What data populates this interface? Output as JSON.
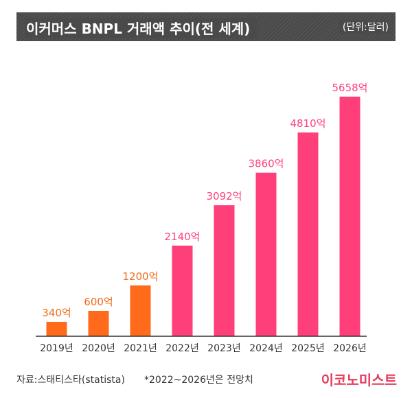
{
  "header": {
    "title": "이커머스 BNPL 거래액 추이(전 세계)",
    "unit": "(단위:달러)"
  },
  "footer": {
    "source": "자료:스태티스타(statista)",
    "note": "*2022~2026년은 전망치",
    "brand": "이코노미스트"
  },
  "colors": {
    "actual": "#ff6b1a",
    "forecast": "#ff3f7a",
    "actual_label": "#f26a1b",
    "forecast_label": "#ff3f7a",
    "axis": "#333333"
  },
  "chart_data": {
    "type": "bar",
    "title": "이커머스 BNPL 거래액 추이(전 세계)",
    "unit": "(단위:달러)",
    "categories": [
      "2019년",
      "2020년",
      "2021년",
      "2022년",
      "2023년",
      "2024년",
      "2025년",
      "2026년"
    ],
    "values": [
      340,
      600,
      1200,
      2140,
      3092,
      3860,
      4810,
      5658
    ],
    "value_labels": [
      "340억",
      "600억",
      "1200억",
      "2140억",
      "3092억",
      "3860억",
      "4810억",
      "5658억"
    ],
    "forecast_flags": [
      false,
      false,
      false,
      true,
      true,
      true,
      true,
      true
    ],
    "ylim": [
      0,
      5800
    ],
    "grid": false,
    "legend": "none"
  }
}
